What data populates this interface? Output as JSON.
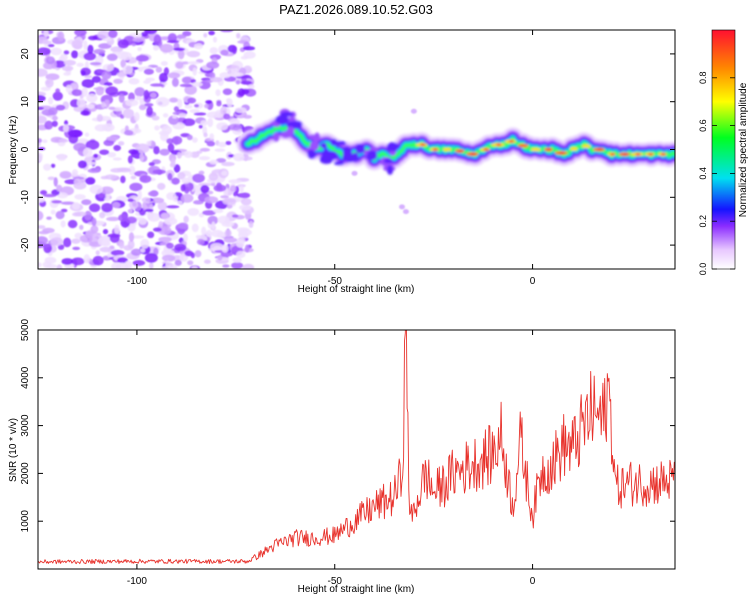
{
  "figure_title": "PAZ1.2026.089.10.52.G03",
  "chart_data": [
    {
      "type": "heatmap",
      "title": "PAZ1.2026.089.10.52.G03",
      "xlabel": "Height of straight line (km)",
      "ylabel": "Frequency (Hz)",
      "xlim": [
        -125,
        36
      ],
      "ylim": [
        -25,
        25
      ],
      "xticks": [
        -100,
        -50,
        0
      ],
      "yticks": [
        -20,
        -10,
        0,
        10,
        20
      ],
      "colorbar": {
        "label": "Normalized spectral amplitude",
        "range": [
          0,
          1
        ],
        "ticks": [
          "0.0",
          "0.2",
          "0.4",
          "0.6",
          "0.8"
        ],
        "tick_values": [
          0.0,
          0.2,
          0.4,
          0.6,
          0.8
        ]
      },
      "noise_region_x": [
        -125,
        -71
      ],
      "signal_trace": {
        "x": [
          -72,
          -68,
          -65,
          -62,
          -60,
          -58,
          -55,
          -52,
          -50,
          -48,
          -45,
          -42,
          -40,
          -38,
          -35,
          -32,
          -30,
          -28,
          -25,
          -20,
          -15,
          -12,
          -10,
          -7,
          -5,
          -3,
          0,
          3,
          5,
          8,
          10,
          13,
          15,
          18,
          20,
          23,
          25,
          28,
          30,
          33,
          36
        ],
        "y": [
          1,
          3,
          4,
          5,
          4,
          2,
          0,
          1,
          0,
          -1,
          -1,
          0,
          -2,
          -1,
          -2,
          1,
          1,
          1,
          0,
          0,
          -1,
          0,
          1,
          1,
          2,
          1,
          0,
          0,
          0,
          -1,
          0,
          1,
          0,
          0,
          -1,
          -1,
          -1,
          -1,
          -1,
          -1,
          -1
        ]
      }
    },
    {
      "type": "line",
      "title": "",
      "xlabel": "Height of straight line (km)",
      "ylabel": "SNR (10 * v/v)",
      "xlim": [
        -125,
        36
      ],
      "ylim": [
        0,
        5000
      ],
      "xticks": [
        -100,
        -50,
        0
      ],
      "yticks": [
        1000,
        2000,
        3000,
        4000,
        5000
      ],
      "series": [
        {
          "name": "SNR",
          "color": "#e8322c",
          "x": [
            -125,
            -100,
            -72,
            -70,
            -65,
            -60,
            -55,
            -50,
            -45,
            -40,
            -35,
            -33,
            -32,
            -31,
            -30,
            -27,
            -25,
            -22,
            -20,
            -15,
            -10,
            -8,
            -5,
            -3,
            -1,
            0,
            2,
            5,
            8,
            10,
            13,
            15,
            18,
            19,
            20,
            21,
            25,
            30,
            36
          ],
          "y": [
            150,
            160,
            160,
            250,
            500,
            650,
            650,
            700,
            1000,
            1300,
            1500,
            2000,
            5000,
            1000,
            1200,
            2000,
            1600,
            1800,
            2000,
            2200,
            2400,
            2800,
            1300,
            2700,
            1600,
            1100,
            2000,
            2200,
            2600,
            2500,
            3000,
            3300,
            3100,
            3800,
            3000,
            1700,
            1800,
            1800,
            1850
          ]
        }
      ]
    }
  ]
}
